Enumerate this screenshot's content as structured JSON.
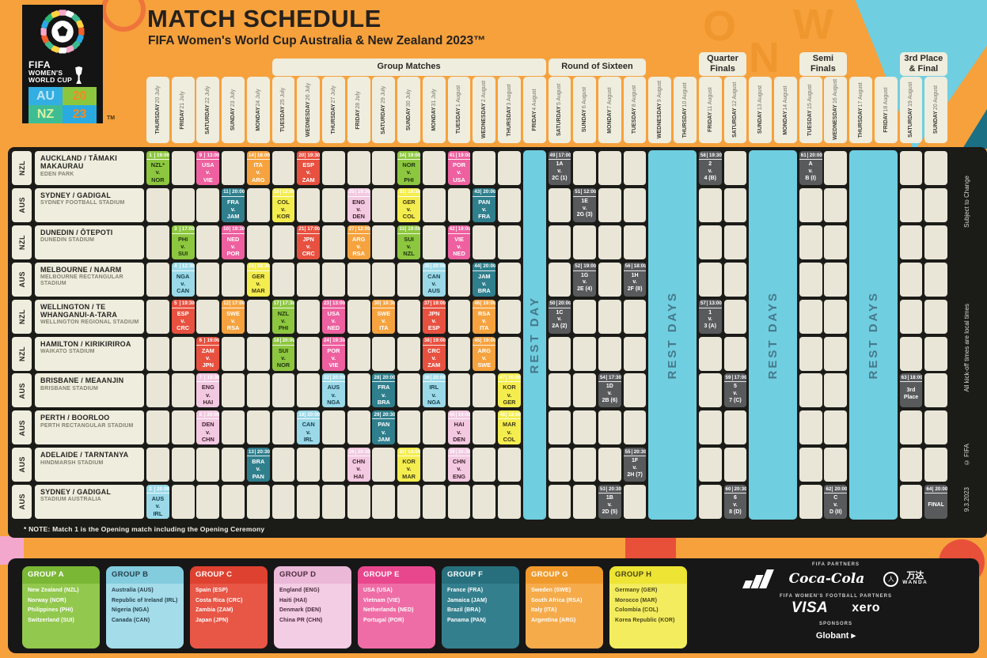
{
  "meta": {
    "title": "MATCH SCHEDULE",
    "subtitle": "FIFA Women's World Cup Australia & New Zealand 2023™",
    "note": "* NOTE: Match 1 is the Opening match including the Opening Ceremony",
    "side_top": "Subject to Change",
    "side_middle": "All kick-off times are local times",
    "side_copyright": "© FIFA",
    "side_date": "9.3.2023"
  },
  "logo": {
    "fifa": "FIFA",
    "line2": "WOMEN'S",
    "line3": "WORLD CUP",
    "au": "AU",
    "nz": "NZ",
    "y20": "20",
    "y23": "23",
    "tm": "TM"
  },
  "stages": [
    {
      "lines": [
        "Group Matches"
      ],
      "start": 6,
      "span": 11
    },
    {
      "lines": [
        "Round of Sixteen"
      ],
      "start": 17,
      "span": 4
    },
    {
      "lines": [
        "Quarter",
        "Finals"
      ],
      "start": 23,
      "span": 2
    },
    {
      "lines": [
        "Semi",
        "Finals"
      ],
      "start": 27,
      "span": 2
    },
    {
      "lines": [
        "3rd Place",
        "& Final"
      ],
      "start": 31,
      "span": 2
    }
  ],
  "dates": [
    {
      "day": "THURSDAY",
      "date": "20 July"
    },
    {
      "day": "FRIDAY",
      "date": "21 July"
    },
    {
      "day": "SATURDAY",
      "date": "22 July"
    },
    {
      "day": "SUNDAY",
      "date": "23 July"
    },
    {
      "day": "MONDAY",
      "date": "24 July"
    },
    {
      "day": "TUESDAY",
      "date": "25 July"
    },
    {
      "day": "WEDNESDAY",
      "date": "26 July"
    },
    {
      "day": "THURSDAY",
      "date": "27 July"
    },
    {
      "day": "FRIDAY",
      "date": "28 July"
    },
    {
      "day": "SATURDAY",
      "date": "29 July"
    },
    {
      "day": "SUNDAY",
      "date": "30 July"
    },
    {
      "day": "MONDAY",
      "date": "31 July"
    },
    {
      "day": "TUESDAY",
      "date": "1 August"
    },
    {
      "day": "WEDNESDAY",
      "date": "2 August"
    },
    {
      "day": "THURSDAY",
      "date": "3 August"
    },
    {
      "day": "FRIDAY",
      "date": "4 August"
    },
    {
      "day": "SATURDAY",
      "date": "5 August"
    },
    {
      "day": "SUNDAY",
      "date": "6 August"
    },
    {
      "day": "MONDAY",
      "date": "7 August"
    },
    {
      "day": "TUESDAY",
      "date": "8 August"
    },
    {
      "day": "WEDNESDAY",
      "date": "9 August"
    },
    {
      "day": "THURSDAY",
      "date": "10 August"
    },
    {
      "day": "FRIDAY",
      "date": "11 August"
    },
    {
      "day": "SATURDAY",
      "date": "12 August"
    },
    {
      "day": "SUNDAY",
      "date": "13 August"
    },
    {
      "day": "MONDAY",
      "date": "14 August"
    },
    {
      "day": "TUESDAY",
      "date": "15 August"
    },
    {
      "day": "WEDNESDAY",
      "date": "16 August"
    },
    {
      "day": "THURSDAY",
      "date": "17 August"
    },
    {
      "day": "FRIDAY",
      "date": "18 August"
    },
    {
      "day": "SATURDAY",
      "date": "19 August"
    },
    {
      "day": "SUNDAY",
      "date": "20 August"
    }
  ],
  "rest_bands": [
    {
      "col": 16,
      "span": 1,
      "label": "REST DAY"
    },
    {
      "col": 21,
      "span": 2,
      "label": "REST DAYS"
    },
    {
      "col": 25,
      "span": 2,
      "label": "REST DAYS"
    },
    {
      "col": 29,
      "span": 2,
      "label": "REST DAYS"
    }
  ],
  "venues": [
    {
      "cc": "NZL",
      "city": "AUCKLAND / TĀMAKI MAKAURAU",
      "stadium": "EDEN PARK"
    },
    {
      "cc": "AUS",
      "city": "SYDNEY / GADIGAL",
      "stadium": "SYDNEY FOOTBALL STADIUM"
    },
    {
      "cc": "NZL",
      "city": "DUNEDIN / ŌTEPOTI",
      "stadium": "DUNEDIN STADIUM"
    },
    {
      "cc": "AUS",
      "city": "MELBOURNE / NAARM",
      "stadium": "MELBOURNE RECTANGULAR STADIUM"
    },
    {
      "cc": "NZL",
      "city": "WELLINGTON / TE WHANGANUI-A-TARA",
      "stadium": "WELLINGTON REGIONAL STADIUM"
    },
    {
      "cc": "NZL",
      "city": "HAMILTON / KIRIKIRIROA",
      "stadium": "WAIKATO STADIUM"
    },
    {
      "cc": "AUS",
      "city": "BRISBANE / MEAANJIN",
      "stadium": "BRISBANE STADIUM"
    },
    {
      "cc": "AUS",
      "city": "PERTH / BOORLOO",
      "stadium": "PERTH RECTANGULAR STADIUM"
    },
    {
      "cc": "AUS",
      "city": "ADELAIDE / TARNTANYA",
      "stadium": "HINDMARSH STADIUM"
    },
    {
      "cc": "AUS",
      "city": "SYDNEY / GADIGAL",
      "stadium": "STADIUM AUSTRALIA"
    }
  ],
  "matches": [
    {
      "r": 1,
      "c": 1,
      "n": "1",
      "t": "19:00",
      "a": "NZL*",
      "b": "NOR",
      "g": "A"
    },
    {
      "r": 1,
      "c": 3,
      "n": "9",
      "t": "13:00",
      "a": "USA",
      "b": "VIE",
      "g": "E"
    },
    {
      "r": 1,
      "c": 5,
      "n": "14",
      "t": "18:00",
      "a": "ITA",
      "b": "ARG",
      "g": "G"
    },
    {
      "r": 1,
      "c": 7,
      "n": "20",
      "t": "19:30",
      "a": "ESP",
      "b": "ZAM",
      "g": "C"
    },
    {
      "r": 1,
      "c": 11,
      "n": "34",
      "t": "19:00",
      "a": "NOR",
      "b": "PHI",
      "g": "A"
    },
    {
      "r": 1,
      "c": 13,
      "n": "41",
      "t": "19:00",
      "a": "POR",
      "b": "USA",
      "g": "E"
    },
    {
      "r": 1,
      "c": 17,
      "n": "49",
      "t": "17:00",
      "a": "1A",
      "b": "2C (1)",
      "g": "K"
    },
    {
      "r": 1,
      "c": 23,
      "n": "58",
      "t": "19:30",
      "a": "2",
      "b": "4 (B)",
      "g": "K"
    },
    {
      "r": 1,
      "c": 27,
      "n": "61",
      "t": "20:00",
      "a": "A",
      "b": "B (I)",
      "g": "K"
    },
    {
      "r": 2,
      "c": 4,
      "n": "11",
      "t": "20:00",
      "a": "FRA",
      "b": "JAM",
      "g": "F"
    },
    {
      "r": 2,
      "c": 6,
      "n": "16",
      "t": "12:00",
      "a": "COL",
      "b": "KOR",
      "g": "H"
    },
    {
      "r": 2,
      "c": 9,
      "n": "25",
      "t": "19:30",
      "a": "ENG",
      "b": "DEN",
      "g": "D"
    },
    {
      "r": 2,
      "c": 11,
      "n": "31",
      "t": "19:30",
      "a": "GER",
      "b": "COL",
      "g": "H"
    },
    {
      "r": 2,
      "c": 14,
      "n": "43",
      "t": "20:00",
      "a": "PAN",
      "b": "FRA",
      "g": "F"
    },
    {
      "r": 2,
      "c": 18,
      "n": "51",
      "t": "12:00",
      "a": "1E",
      "b": "2G (3)",
      "g": "K"
    },
    {
      "r": 3,
      "c": 2,
      "n": "3",
      "t": "17:00",
      "a": "PHI",
      "b": "SUI",
      "g": "A"
    },
    {
      "r": 3,
      "c": 4,
      "n": "10",
      "t": "19:30",
      "a": "NED",
      "b": "POR",
      "g": "E"
    },
    {
      "r": 3,
      "c": 7,
      "n": "21",
      "t": "17:00",
      "a": "JPN",
      "b": "CRC",
      "g": "C"
    },
    {
      "r": 3,
      "c": 9,
      "n": "27",
      "t": "12:00",
      "a": "ARG",
      "b": "RSA",
      "g": "G"
    },
    {
      "r": 3,
      "c": 11,
      "n": "33",
      "t": "19:00",
      "a": "SUI",
      "b": "NZL",
      "g": "A"
    },
    {
      "r": 3,
      "c": 13,
      "n": "42",
      "t": "19:00",
      "a": "VIE",
      "b": "NED",
      "g": "E"
    },
    {
      "r": 4,
      "c": 2,
      "n": "4",
      "t": "12:30",
      "a": "NGA",
      "b": "CAN",
      "g": "B"
    },
    {
      "r": 4,
      "c": 5,
      "n": "15",
      "t": "18:30",
      "a": "GER",
      "b": "MAR",
      "g": "H"
    },
    {
      "r": 4,
      "c": 12,
      "n": "35",
      "t": "20:00",
      "a": "CAN",
      "b": "AUS",
      "g": "B"
    },
    {
      "r": 4,
      "c": 14,
      "n": "44",
      "t": "20:00",
      "a": "JAM",
      "b": "BRA",
      "g": "F"
    },
    {
      "r": 4,
      "c": 18,
      "n": "52",
      "t": "19:00",
      "a": "1G",
      "b": "2E (4)",
      "g": "K"
    },
    {
      "r": 4,
      "c": 20,
      "n": "56",
      "t": "18:00",
      "a": "1H",
      "b": "2F (8)",
      "g": "K"
    },
    {
      "r": 5,
      "c": 2,
      "n": "5",
      "t": "19:30",
      "a": "ESP",
      "b": "CRC",
      "g": "C"
    },
    {
      "r": 5,
      "c": 4,
      "n": "12",
      "t": "17:00",
      "a": "SWE",
      "b": "RSA",
      "g": "G"
    },
    {
      "r": 5,
      "c": 6,
      "n": "17",
      "t": "17:30",
      "a": "NZL",
      "b": "PHI",
      "g": "A"
    },
    {
      "r": 5,
      "c": 8,
      "n": "23",
      "t": "13:00",
      "a": "USA",
      "b": "NED",
      "g": "E"
    },
    {
      "r": 5,
      "c": 10,
      "n": "30",
      "t": "19:30",
      "a": "SWE",
      "b": "ITA",
      "g": "G"
    },
    {
      "r": 5,
      "c": 12,
      "n": "37",
      "t": "19:00",
      "a": "JPN",
      "b": "ESP",
      "g": "C"
    },
    {
      "r": 5,
      "c": 14,
      "n": "46",
      "t": "19:00",
      "a": "RSA",
      "b": "ITA",
      "g": "G"
    },
    {
      "r": 5,
      "c": 17,
      "n": "50",
      "t": "20:00",
      "a": "1C",
      "b": "2A (2)",
      "g": "K"
    },
    {
      "r": 5,
      "c": 23,
      "n": "57",
      "t": "13:00",
      "a": "1",
      "b": "3 (A)",
      "g": "K"
    },
    {
      "r": 6,
      "c": 3,
      "n": "6",
      "t": "19:00",
      "a": "ZAM",
      "b": "JPN",
      "g": "C"
    },
    {
      "r": 6,
      "c": 6,
      "n": "18",
      "t": "20:00",
      "a": "SUI",
      "b": "NOR",
      "g": "A"
    },
    {
      "r": 6,
      "c": 8,
      "n": "24",
      "t": "19:30",
      "a": "POR",
      "b": "VIE",
      "g": "E"
    },
    {
      "r": 6,
      "c": 12,
      "n": "38",
      "t": "19:00",
      "a": "CRC",
      "b": "ZAM",
      "g": "C"
    },
    {
      "r": 6,
      "c": 14,
      "n": "45",
      "t": "19:00",
      "a": "ARG",
      "b": "SWE",
      "g": "G"
    },
    {
      "r": 7,
      "c": 3,
      "n": "7",
      "t": "19:30",
      "a": "ENG",
      "b": "HAI",
      "g": "D"
    },
    {
      "r": 7,
      "c": 8,
      "n": "22",
      "t": "20:00",
      "a": "AUS",
      "b": "NGA",
      "g": "B"
    },
    {
      "r": 7,
      "c": 10,
      "n": "28",
      "t": "20:00",
      "a": "FRA",
      "b": "BRA",
      "g": "F"
    },
    {
      "r": 7,
      "c": 12,
      "n": "36",
      "t": "20:00",
      "a": "IRL",
      "b": "NGA",
      "g": "B"
    },
    {
      "r": 7,
      "c": 15,
      "n": "47",
      "t": "20:00",
      "a": "KOR",
      "b": "GER",
      "g": "H"
    },
    {
      "r": 7,
      "c": 19,
      "n": "54",
      "t": "17:30",
      "a": "1D",
      "b": "2B (6)",
      "g": "K"
    },
    {
      "r": 7,
      "c": 24,
      "n": "59",
      "t": "17:00",
      "a": "5",
      "b": "7 (C)",
      "g": "K"
    },
    {
      "r": 7,
      "c": 31,
      "n": "63",
      "t": "18:00",
      "lines": [
        "3rd",
        "Place"
      ],
      "g": "K"
    },
    {
      "r": 8,
      "c": 3,
      "n": "8",
      "t": "20:00",
      "a": "DEN",
      "b": "CHN",
      "g": "D"
    },
    {
      "r": 8,
      "c": 7,
      "n": "19",
      "t": "20:00",
      "a": "CAN",
      "b": "IRL",
      "g": "B"
    },
    {
      "r": 8,
      "c": 10,
      "n": "29",
      "t": "20:30",
      "a": "PAN",
      "b": "JAM",
      "g": "F"
    },
    {
      "r": 8,
      "c": 13,
      "n": "40",
      "t": "19:00",
      "a": "HAI",
      "b": "DEN",
      "g": "D"
    },
    {
      "r": 8,
      "c": 15,
      "n": "48",
      "t": "18:00",
      "a": "MAR",
      "b": "COL",
      "g": "H"
    },
    {
      "r": 9,
      "c": 5,
      "n": "13",
      "t": "20:30",
      "a": "BRA",
      "b": "PAN",
      "g": "F"
    },
    {
      "r": 9,
      "c": 9,
      "n": "26",
      "t": "20:30",
      "a": "CHN",
      "b": "HAI",
      "g": "D"
    },
    {
      "r": 9,
      "c": 11,
      "n": "32",
      "t": "14:00",
      "a": "KOR",
      "b": "MAR",
      "g": "H"
    },
    {
      "r": 9,
      "c": 13,
      "n": "39",
      "t": "20:30",
      "a": "CHN",
      "b": "ENG",
      "g": "D"
    },
    {
      "r": 9,
      "c": 20,
      "n": "55",
      "t": "20:30",
      "a": "1F",
      "b": "2H (7)",
      "g": "K"
    },
    {
      "r": 10,
      "c": 1,
      "n": "2",
      "t": "20:00",
      "a": "AUS",
      "b": "IRL",
      "g": "B"
    },
    {
      "r": 10,
      "c": 19,
      "n": "53",
      "t": "20:30",
      "a": "1B",
      "b": "2D (5)",
      "g": "K"
    },
    {
      "r": 10,
      "c": 24,
      "n": "60",
      "t": "20:30",
      "a": "6",
      "b": "8 (D)",
      "g": "K"
    },
    {
      "r": 10,
      "c": 28,
      "n": "62",
      "t": "20:00",
      "a": "C",
      "b": "D (II)",
      "g": "K"
    },
    {
      "r": 10,
      "c": 32,
      "n": "64",
      "t": "20:00",
      "lines": [
        "FINAL"
      ],
      "g": "K"
    }
  ],
  "groups": [
    {
      "name": "GROUP A",
      "teams": [
        "New Zealand (NZL)",
        "Norway (NOR)",
        "Philippines (PHI)",
        "Switzerland (SUI)"
      ],
      "hd": "#7AB735",
      "bd": "#92C84E",
      "tx": "#FFFFFF"
    },
    {
      "name": "GROUP B",
      "teams": [
        "Australia (AUS)",
        "Republic of Ireland (IRL)",
        "Nigeria (NGA)",
        "Canada (CAN)"
      ],
      "hd": "#82CCDE",
      "bd": "#A4DCEA",
      "tx": "#25404A"
    },
    {
      "name": "GROUP C",
      "teams": [
        "Spain (ESP)",
        "Costa Rica (CRC)",
        "Zambia (ZAM)",
        "Japan (JPN)"
      ],
      "hd": "#DE4130",
      "bd": "#E85646",
      "tx": "#FFFFFF"
    },
    {
      "name": "GROUP D",
      "teams": [
        "England (ENG)",
        "Haiti (HAI)",
        "Denmark (DEN)",
        "China PR (CHN)"
      ],
      "hd": "#EBB8D8",
      "bd": "#F3CDE4",
      "tx": "#4A2A3C"
    },
    {
      "name": "GROUP E",
      "teams": [
        "USA (USA)",
        "Vietnam (VIE)",
        "Netherlands (NED)",
        "Portugal (POR)"
      ],
      "hd": "#E9478D",
      "bd": "#EF6DA6",
      "tx": "#FFFFFF"
    },
    {
      "name": "GROUP F",
      "teams": [
        "France (FRA)",
        "Jamaica (JAM)",
        "Brazil (BRA)",
        "Panama (PAN)"
      ],
      "hd": "#276F7D",
      "bd": "#347F8E",
      "tx": "#FFFFFF"
    },
    {
      "name": "GROUP G",
      "teams": [
        "Sweden (SWE)",
        "South Africa (RSA)",
        "Italy (ITA)",
        "Argentina (ARG)"
      ],
      "hd": "#F0992B",
      "bd": "#F6AB4B",
      "tx": "#FFFFFF"
    },
    {
      "name": "GROUP H",
      "teams": [
        "Germany (GER)",
        "Morocco (MAR)",
        "Colombia (COL)",
        "Korea Republic (KOR)"
      ],
      "hd": "#EDE433",
      "bd": "#F3EC5F",
      "tx": "#4A451A"
    }
  ],
  "sponsors": {
    "partners_label": "FIFA PARTNERS",
    "cocacola": "Coca-Cola",
    "wanda_cn": "万达",
    "wanda_en": "WANDA",
    "wff_label": "FIFA WOMEN'S FOOTBALL PARTNERS",
    "visa": "VISA",
    "xero": "xero",
    "sponsors_label": "SPONSORS",
    "globant": "Globant ▸"
  },
  "colors": {
    "background": "#F6A13C",
    "board": "#1B1B18",
    "rest": "#6FCEE0",
    "cream": "#EFEDDE",
    "groupA": "#8DC73F",
    "groupB": "#9BD9E8",
    "groupC": "#E85140",
    "groupD": "#F2C9E1",
    "groupE": "#EE609F",
    "groupF": "#2F7F8D",
    "groupG": "#F6A33F",
    "groupH": "#F4ED4F",
    "knockout": "#595A5C"
  }
}
